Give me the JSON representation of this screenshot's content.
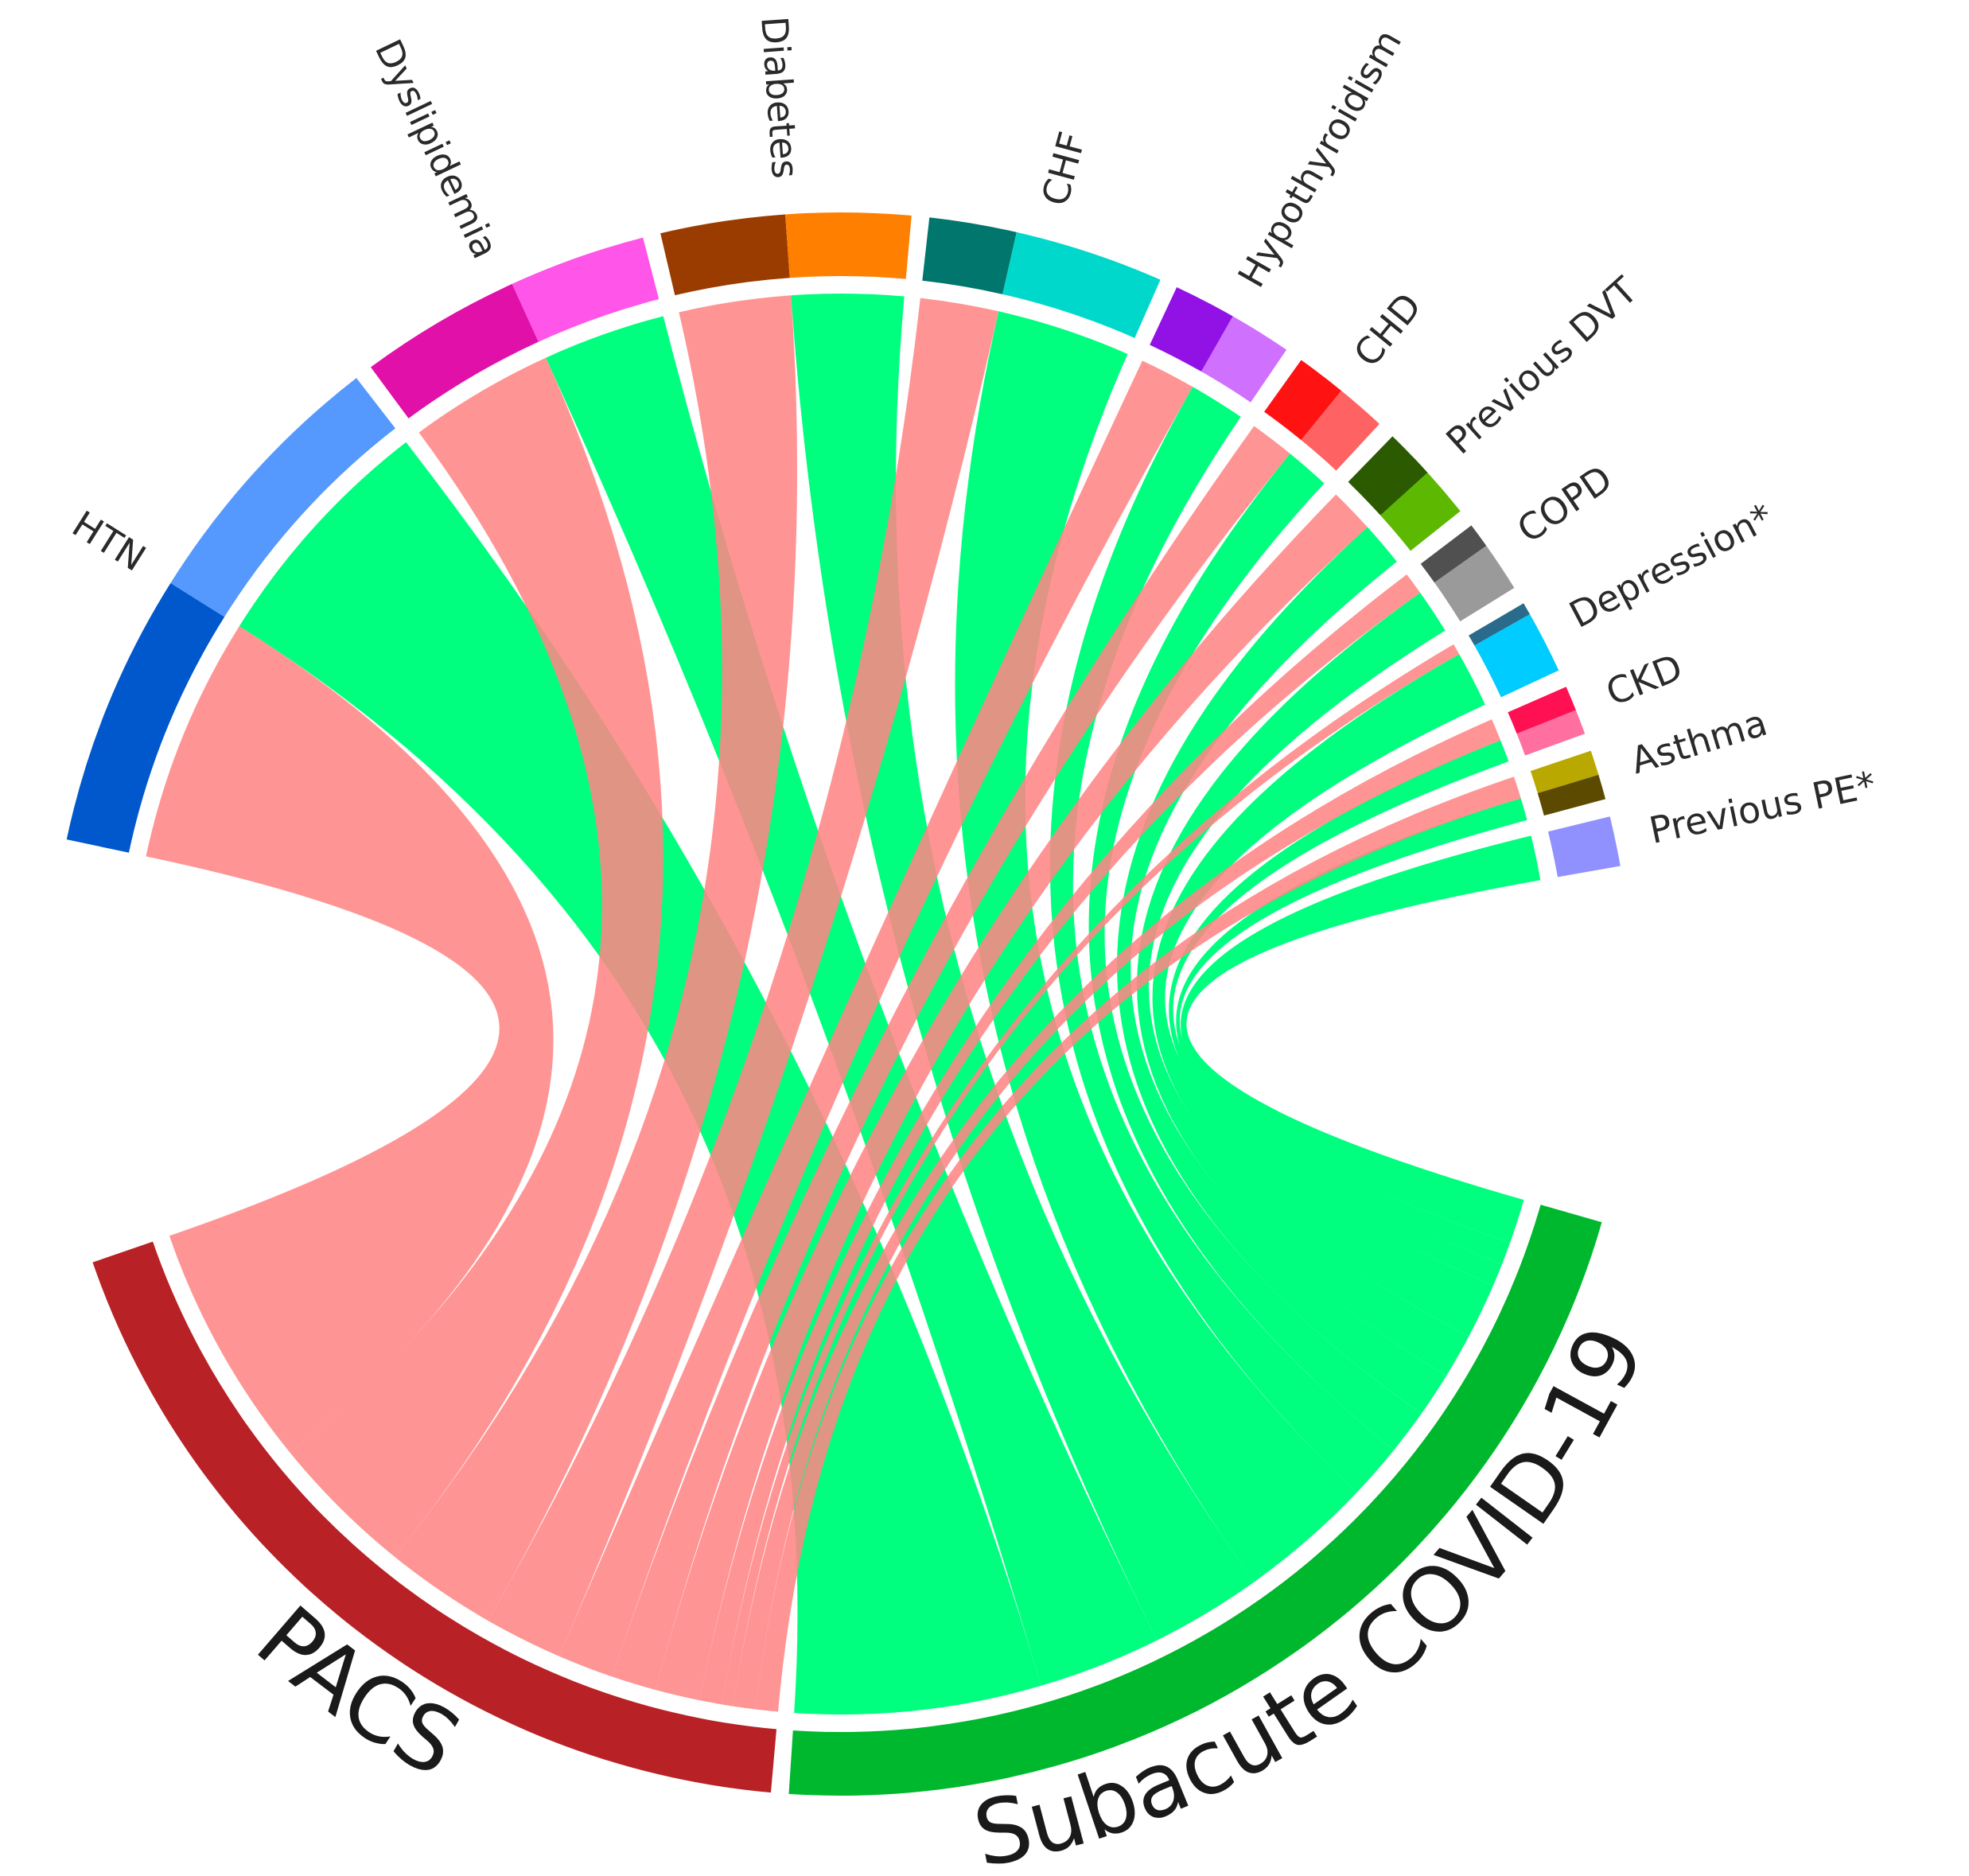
{
  "chart_data": {
    "type": "chord",
    "categories": [
      "HTN",
      "Dyslipidemia",
      "Diabetes",
      "CHF",
      "Hypothyroidism",
      "CHD",
      "Previous DVT",
      "COPD",
      "Depression*",
      "CKD",
      "Asthma",
      "Previous PE*"
    ],
    "series": [
      {
        "name": "PACS",
        "color": "#ff8585",
        "ring_color": "#b82226",
        "values": [
          22,
          13,
          10,
          7,
          5,
          4,
          4,
          2,
          1,
          2,
          2,
          0
        ],
        "segment_colors": [
          "#0058cc",
          "#e010a8",
          "#9a3c00",
          "#00766c",
          "#9212e6",
          "#ff1212",
          "#2c5a00",
          "#505050",
          "#2a6a8a",
          "#ff1052",
          "#b8a800",
          "#9090ff"
        ]
      },
      {
        "name": "Subacute COVID-19",
        "color": "#00ff7f",
        "ring_color": "#00b82e",
        "values": [
          22,
          11,
          10,
          12,
          5,
          4,
          4,
          4,
          5,
          2,
          2,
          4
        ],
        "segment_colors": [
          "#5599ff",
          "#ff55e8",
          "#ff8000",
          "#00d8cc",
          "#d070ff",
          "#ff6262",
          "#5cb800",
          "#9a9a9a",
          "#00ccff",
          "#ff70a0",
          "#5c4a00",
          "#9090ff"
        ]
      }
    ]
  }
}
